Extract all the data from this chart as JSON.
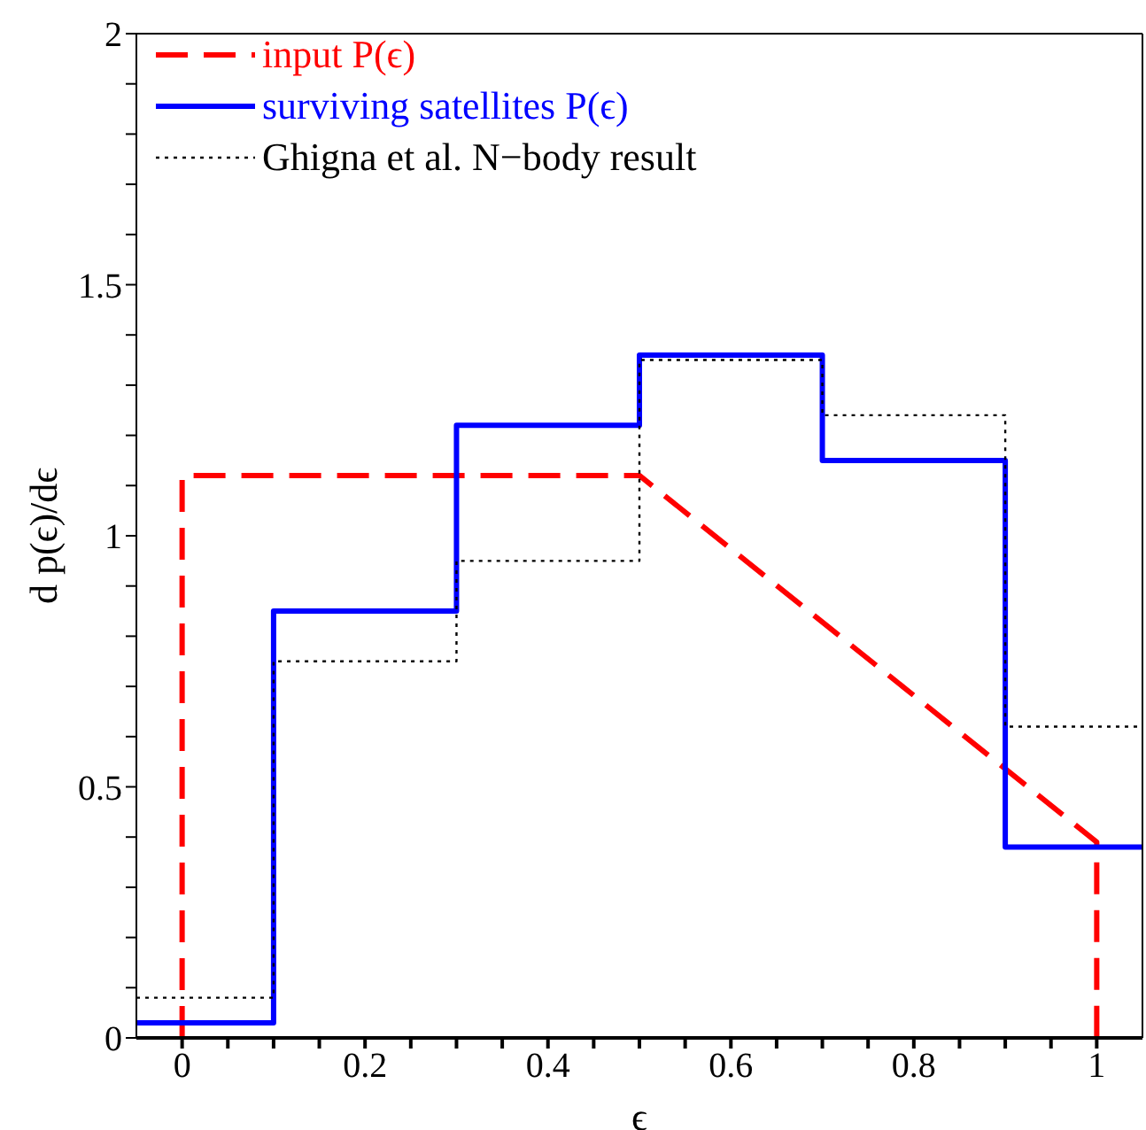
{
  "chart_data": {
    "type": "step",
    "xlabel": "ϵ",
    "ylabel": "d p(ϵ)/dϵ",
    "xlim": [
      -0.05,
      1.05
    ],
    "xticks": [
      0,
      {
        "value": 0.05,
        "label": null
      },
      0.2,
      {
        "value": 0.1,
        "label": null
      },
      {
        "value": 0.15,
        "label": null
      },
      {
        "value": 0.25,
        "label": null
      },
      {
        "value": 0.3,
        "label": null
      },
      {
        "value": 0.35,
        "label": null
      },
      0.4,
      {
        "value": 0.45,
        "label": null
      },
      {
        "value": 0.5,
        "label": null
      },
      {
        "value": 0.55,
        "label": null
      },
      0.6,
      {
        "value": 0.65,
        "label": null
      },
      {
        "value": 0.7,
        "label": null
      },
      {
        "value": 0.75,
        "label": null
      },
      0.8,
      {
        "value": 0.85,
        "label": null
      },
      {
        "value": 0.9,
        "label": null
      },
      {
        "value": 0.95,
        "label": null
      },
      1
    ],
    "ylim": [
      0,
      2
    ],
    "yticks": [
      0,
      {
        "value": 0.1,
        "label": null
      },
      {
        "value": 0.2,
        "label": null
      },
      {
        "value": 0.3,
        "label": null
      },
      {
        "value": 0.4,
        "label": null
      },
      0.5,
      {
        "value": 0.6,
        "label": null
      },
      {
        "value": 0.7,
        "label": null
      },
      {
        "value": 0.8,
        "label": null
      },
      {
        "value": 0.9,
        "label": null
      },
      1,
      {
        "value": 1.1,
        "label": null
      },
      {
        "value": 1.2,
        "label": null
      },
      {
        "value": 1.3,
        "label": null
      },
      {
        "value": 1.4,
        "label": null
      },
      1.5,
      {
        "value": 1.6,
        "label": null
      },
      {
        "value": 1.7,
        "label": null
      },
      {
        "value": 1.8,
        "label": null
      },
      {
        "value": 1.9,
        "label": null
      },
      2
    ],
    "legend": "top left",
    "marker": "none",
    "series": [
      {
        "name": "input P(ϵ)",
        "type": "line",
        "line_style": "dashed",
        "color": "#ff0000",
        "x": [
          0,
          0,
          0.5,
          1,
          1
        ],
        "values": [
          0,
          1.12,
          1.12,
          0.39,
          0
        ]
      },
      {
        "name": "surviving satellites P(ϵ)",
        "line_style": "solid",
        "color": "#0000ff",
        "x": [
          -0.05,
          0.1,
          0.3,
          0.5,
          0.7,
          0.9,
          1.05
        ],
        "values": [
          0.03,
          0.85,
          1.22,
          1.36,
          1.15,
          0.38,
          0.38
        ]
      },
      {
        "name": "Ghigna et al. N−body result",
        "line_style": "dotted",
        "color": "#000000",
        "x": [
          -0.05,
          0.1,
          0.3,
          0.5,
          0.7,
          0.9,
          1.05
        ],
        "values": [
          0.08,
          0.75,
          0.95,
          1.35,
          1.24,
          0.62,
          0.62
        ]
      }
    ]
  }
}
